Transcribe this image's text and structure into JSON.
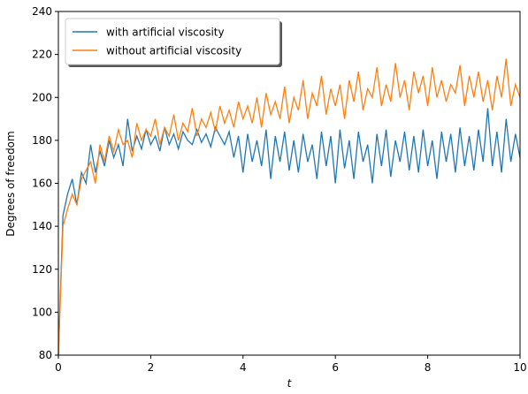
{
  "chart_data": {
    "type": "line",
    "x_label": "t",
    "y_label": "Degrees of freedom",
    "x": [
      0,
      0.1,
      0.2,
      0.3,
      0.4,
      0.5,
      0.6,
      0.7,
      0.8,
      0.9,
      1,
      1.1,
      1.2,
      1.3,
      1.4,
      1.5,
      1.6,
      1.7,
      1.8,
      1.9,
      2,
      2.1,
      2.2,
      2.3,
      2.4,
      2.5,
      2.6,
      2.7,
      2.8,
      2.9,
      3,
      3.1,
      3.2,
      3.3,
      3.4,
      3.5,
      3.6,
      3.7,
      3.8,
      3.9,
      4,
      4.1,
      4.2,
      4.3,
      4.4,
      4.5,
      4.6,
      4.7,
      4.8,
      4.9,
      5,
      5.1,
      5.2,
      5.3,
      5.4,
      5.5,
      5.6,
      5.7,
      5.8,
      5.9,
      6,
      6.1,
      6.2,
      6.3,
      6.4,
      6.5,
      6.6,
      6.7,
      6.8,
      6.9,
      7,
      7.1,
      7.2,
      7.3,
      7.4,
      7.5,
      7.6,
      7.7,
      7.8,
      7.9,
      8,
      8.1,
      8.2,
      8.3,
      8.4,
      8.5,
      8.6,
      8.7,
      8.8,
      8.9,
      9,
      9.1,
      9.2,
      9.3,
      9.4,
      9.5,
      9.6,
      9.7,
      9.8,
      9.9,
      10
    ],
    "series": [
      {
        "name": "with artificial viscosity",
        "color": "#1f77b4",
        "values": [
          80,
          145,
          155,
          162,
          150,
          165,
          160,
          178,
          165,
          175,
          168,
          180,
          172,
          178,
          168,
          190,
          175,
          182,
          176,
          185,
          178,
          182,
          175,
          186,
          178,
          183,
          176,
          184,
          180,
          178,
          185,
          179,
          183,
          177,
          186,
          182,
          178,
          184,
          172,
          182,
          165,
          183,
          170,
          180,
          168,
          185,
          162,
          182,
          170,
          184,
          166,
          180,
          165,
          183,
          170,
          178,
          162,
          184,
          168,
          182,
          160,
          185,
          167,
          180,
          162,
          184,
          170,
          178,
          160,
          183,
          168,
          185,
          163,
          180,
          170,
          184,
          166,
          182,
          165,
          185,
          168,
          180,
          162,
          184,
          170,
          183,
          165,
          186,
          168,
          182,
          166,
          185,
          170,
          195,
          168,
          184,
          165,
          190,
          170,
          183,
          172
        ]
      },
      {
        "name": "without artificial viscosity",
        "color": "#ff7f0e",
        "values": [
          80,
          140,
          148,
          155,
          150,
          162,
          166,
          170,
          160,
          178,
          170,
          182,
          175,
          185,
          178,
          180,
          172,
          188,
          180,
          185,
          182,
          190,
          178,
          186,
          182,
          192,
          180,
          188,
          184,
          195,
          182,
          190,
          186,
          193,
          184,
          196,
          188,
          194,
          186,
          198,
          190,
          196,
          188,
          200,
          186,
          202,
          192,
          198,
          190,
          205,
          188,
          200,
          194,
          208,
          190,
          202,
          196,
          210,
          192,
          204,
          196,
          206,
          190,
          208,
          198,
          212,
          194,
          204,
          200,
          214,
          196,
          206,
          198,
          216,
          200,
          208,
          194,
          212,
          202,
          210,
          196,
          214,
          200,
          208,
          198,
          206,
          202,
          215,
          196,
          210,
          200,
          212,
          198,
          208,
          194,
          210,
          200,
          218,
          196,
          206,
          200
        ]
      }
    ],
    "xlim": [
      0,
      10
    ],
    "xticks": [
      0,
      2,
      4,
      6,
      8,
      10
    ],
    "ylim": [
      80,
      240
    ],
    "yticks": [
      80,
      100,
      120,
      140,
      160,
      180,
      200,
      220,
      240
    ],
    "legend": "upper left"
  }
}
